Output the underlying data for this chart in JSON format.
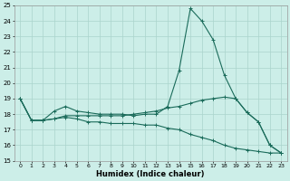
{
  "xlabel": "Humidex (Indice chaleur)",
  "x": [
    0,
    1,
    2,
    3,
    4,
    5,
    6,
    7,
    8,
    9,
    10,
    11,
    12,
    13,
    14,
    15,
    16,
    17,
    18,
    19,
    20,
    21,
    22,
    23
  ],
  "line1": [
    19,
    17.6,
    17.6,
    18.2,
    18.5,
    18.2,
    18.1,
    18.0,
    18.0,
    18.0,
    17.9,
    18.0,
    18.0,
    18.5,
    20.8,
    24.8,
    24.0,
    22.8,
    20.5,
    19.0,
    18.1,
    17.5,
    16.0,
    15.5
  ],
  "line2": [
    19,
    17.6,
    17.6,
    17.7,
    17.9,
    17.9,
    17.9,
    17.9,
    17.9,
    17.9,
    18.0,
    18.1,
    18.2,
    18.4,
    18.5,
    18.7,
    18.9,
    19.0,
    19.1,
    19.0,
    18.1,
    17.5,
    16.0,
    15.5
  ],
  "line3": [
    19,
    17.6,
    17.6,
    17.7,
    17.8,
    17.7,
    17.5,
    17.5,
    17.4,
    17.4,
    17.4,
    17.3,
    17.3,
    17.1,
    17.0,
    16.7,
    16.5,
    16.3,
    16.0,
    15.8,
    15.7,
    15.6,
    15.5,
    15.5
  ],
  "line_color": "#1a6b5a",
  "bg_color": "#cceee8",
  "grid_color": "#aad4cc",
  "ylim": [
    15,
    25
  ],
  "yticks": [
    15,
    16,
    17,
    18,
    19,
    20,
    21,
    22,
    23,
    24,
    25
  ],
  "xticks": [
    0,
    1,
    2,
    3,
    4,
    5,
    6,
    7,
    8,
    9,
    10,
    11,
    12,
    13,
    14,
    15,
    16,
    17,
    18,
    19,
    20,
    21,
    22,
    23
  ]
}
